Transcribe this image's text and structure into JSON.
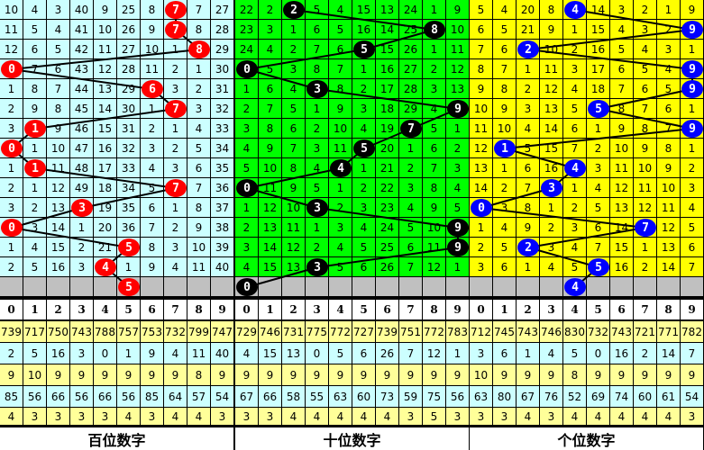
{
  "colors": {
    "stat_yellow": "#ffff99",
    "stat_cyan": "#ccffff",
    "gray": "#c0c0c0"
  },
  "panels": [
    {
      "title": "百位数字",
      "bg": "#ccffff",
      "ball_color": "#ff0000",
      "rows": [
        [
          "10",
          "4",
          "3",
          "40",
          "9",
          "25",
          "8",
          "7",
          "7",
          "27"
        ],
        [
          "11",
          "5",
          "4",
          "41",
          "10",
          "26",
          "9",
          "7",
          "8",
          "28"
        ],
        [
          "12",
          "6",
          "5",
          "42",
          "11",
          "27",
          "10",
          "1",
          "8",
          "29"
        ],
        [
          "0",
          "7",
          "6",
          "43",
          "12",
          "28",
          "11",
          "2",
          "1",
          "30"
        ],
        [
          "1",
          "8",
          "7",
          "44",
          "13",
          "29",
          "6",
          "3",
          "2",
          "31"
        ],
        [
          "2",
          "9",
          "8",
          "45",
          "14",
          "30",
          "1",
          "7",
          "3",
          "32"
        ],
        [
          "3",
          "1",
          "9",
          "46",
          "15",
          "31",
          "2",
          "1",
          "4",
          "33"
        ],
        [
          "0",
          "1",
          "10",
          "47",
          "16",
          "32",
          "3",
          "2",
          "5",
          "34"
        ],
        [
          "1",
          "1",
          "11",
          "48",
          "17",
          "33",
          "4",
          "3",
          "6",
          "35"
        ],
        [
          "2",
          "1",
          "12",
          "49",
          "18",
          "34",
          "5",
          "7",
          "7",
          "36"
        ],
        [
          "3",
          "2",
          "13",
          "3",
          "19",
          "35",
          "6",
          "1",
          "8",
          "37"
        ],
        [
          "0",
          "3",
          "14",
          "1",
          "20",
          "36",
          "7",
          "2",
          "9",
          "38"
        ],
        [
          "1",
          "4",
          "15",
          "2",
          "21",
          "5",
          "8",
          "3",
          "10",
          "39"
        ],
        [
          "2",
          "5",
          "16",
          "3",
          "4",
          "1",
          "9",
          "4",
          "11",
          "40"
        ]
      ],
      "hits": [
        7,
        7,
        8,
        0,
        6,
        7,
        1,
        0,
        1,
        7,
        3,
        0,
        5,
        4
      ],
      "prediction": "5",
      "header": [
        "0",
        "1",
        "2",
        "3",
        "4",
        "5",
        "6",
        "7",
        "8",
        "9"
      ],
      "stats": [
        [
          "739",
          "717",
          "750",
          "743",
          "788",
          "757",
          "753",
          "732",
          "799",
          "747"
        ],
        [
          "2",
          "5",
          "16",
          "3",
          "0",
          "1",
          "9",
          "4",
          "11",
          "40"
        ],
        [
          "9",
          "10",
          "9",
          "9",
          "9",
          "9",
          "9",
          "9",
          "8",
          "9"
        ],
        [
          "85",
          "56",
          "66",
          "56",
          "66",
          "56",
          "85",
          "64",
          "57",
          "54"
        ],
        [
          "4",
          "3",
          "3",
          "3",
          "3",
          "4",
          "3",
          "4",
          "4",
          "3"
        ]
      ]
    },
    {
      "title": "十位数字",
      "bg": "#00ff00",
      "ball_color": "#000000",
      "rows": [
        [
          "22",
          "2",
          "2",
          "5",
          "4",
          "15",
          "13",
          "24",
          "1",
          "9"
        ],
        [
          "23",
          "3",
          "1",
          "6",
          "5",
          "16",
          "14",
          "25",
          "8",
          "10"
        ],
        [
          "24",
          "4",
          "2",
          "7",
          "6",
          "5",
          "15",
          "26",
          "1",
          "11"
        ],
        [
          "0",
          "5",
          "3",
          "8",
          "7",
          "1",
          "16",
          "27",
          "2",
          "12"
        ],
        [
          "1",
          "6",
          "4",
          "3",
          "8",
          "2",
          "17",
          "28",
          "3",
          "13"
        ],
        [
          "2",
          "7",
          "5",
          "1",
          "9",
          "3",
          "18",
          "29",
          "4",
          "9"
        ],
        [
          "3",
          "8",
          "6",
          "2",
          "10",
          "4",
          "19",
          "7",
          "5",
          "1"
        ],
        [
          "4",
          "9",
          "7",
          "3",
          "11",
          "5",
          "20",
          "1",
          "6",
          "2"
        ],
        [
          "5",
          "10",
          "8",
          "4",
          "4",
          "1",
          "21",
          "2",
          "7",
          "3"
        ],
        [
          "0",
          "11",
          "9",
          "5",
          "1",
          "2",
          "22",
          "3",
          "8",
          "4"
        ],
        [
          "1",
          "12",
          "10",
          "3",
          "2",
          "3",
          "23",
          "4",
          "9",
          "5"
        ],
        [
          "2",
          "13",
          "11",
          "1",
          "3",
          "4",
          "24",
          "5",
          "10",
          "9"
        ],
        [
          "3",
          "14",
          "12",
          "2",
          "4",
          "5",
          "25",
          "6",
          "11",
          "9"
        ],
        [
          "4",
          "15",
          "13",
          "3",
          "5",
          "6",
          "26",
          "7",
          "12",
          "1"
        ]
      ],
      "hits": [
        2,
        8,
        5,
        0,
        3,
        9,
        7,
        5,
        4,
        0,
        3,
        9,
        9,
        3
      ],
      "prediction": "0",
      "header": [
        "0",
        "1",
        "2",
        "3",
        "4",
        "5",
        "6",
        "7",
        "8",
        "9"
      ],
      "stats": [
        [
          "729",
          "746",
          "731",
          "775",
          "772",
          "727",
          "739",
          "751",
          "772",
          "783"
        ],
        [
          "4",
          "15",
          "13",
          "0",
          "5",
          "6",
          "26",
          "7",
          "12",
          "1"
        ],
        [
          "9",
          "9",
          "9",
          "9",
          "9",
          "9",
          "9",
          "9",
          "9",
          "9"
        ],
        [
          "67",
          "66",
          "58",
          "55",
          "63",
          "60",
          "73",
          "59",
          "75",
          "56"
        ],
        [
          "3",
          "3",
          "4",
          "4",
          "4",
          "4",
          "4",
          "3",
          "5",
          "3"
        ]
      ]
    },
    {
      "title": "个位数字",
      "bg": "#ffff00",
      "ball_color": "#0000ff",
      "rows": [
        [
          "5",
          "4",
          "20",
          "8",
          "4",
          "14",
          "3",
          "2",
          "1",
          "9"
        ],
        [
          "6",
          "5",
          "21",
          "9",
          "1",
          "15",
          "4",
          "3",
          "2",
          "9"
        ],
        [
          "7",
          "6",
          "2",
          "10",
          "2",
          "16",
          "5",
          "4",
          "3",
          "1"
        ],
        [
          "8",
          "7",
          "1",
          "11",
          "3",
          "17",
          "6",
          "5",
          "4",
          "9"
        ],
        [
          "9",
          "8",
          "2",
          "12",
          "4",
          "18",
          "7",
          "6",
          "5",
          "9"
        ],
        [
          "10",
          "9",
          "3",
          "13",
          "5",
          "5",
          "8",
          "7",
          "6",
          "1"
        ],
        [
          "11",
          "10",
          "4",
          "14",
          "6",
          "1",
          "9",
          "8",
          "7",
          "9"
        ],
        [
          "12",
          "1",
          "5",
          "15",
          "7",
          "2",
          "10",
          "9",
          "8",
          "1"
        ],
        [
          "13",
          "1",
          "6",
          "16",
          "4",
          "3",
          "11",
          "10",
          "9",
          "2"
        ],
        [
          "14",
          "2",
          "7",
          "3",
          "1",
          "4",
          "12",
          "11",
          "10",
          "3"
        ],
        [
          "0",
          "3",
          "8",
          "1",
          "2",
          "5",
          "13",
          "12",
          "11",
          "4"
        ],
        [
          "1",
          "4",
          "9",
          "2",
          "3",
          "6",
          "14",
          "7",
          "12",
          "5"
        ],
        [
          "2",
          "5",
          "2",
          "3",
          "4",
          "7",
          "15",
          "1",
          "13",
          "6"
        ],
        [
          "3",
          "6",
          "1",
          "4",
          "5",
          "5",
          "16",
          "2",
          "14",
          "7"
        ]
      ],
      "hits": [
        4,
        9,
        2,
        9,
        9,
        5,
        9,
        1,
        4,
        3,
        0,
        7,
        2,
        5
      ],
      "prediction": "4",
      "header": [
        "0",
        "1",
        "2",
        "3",
        "4",
        "5",
        "6",
        "7",
        "8",
        "9"
      ],
      "stats": [
        [
          "712",
          "745",
          "743",
          "746",
          "830",
          "732",
          "743",
          "721",
          "771",
          "782"
        ],
        [
          "3",
          "6",
          "1",
          "4",
          "5",
          "0",
          "16",
          "2",
          "14",
          "7"
        ],
        [
          "10",
          "9",
          "9",
          "9",
          "8",
          "9",
          "9",
          "9",
          "9",
          "9"
        ],
        [
          "63",
          "80",
          "67",
          "76",
          "52",
          "69",
          "74",
          "60",
          "61",
          "54"
        ],
        [
          "3",
          "3",
          "4",
          "3",
          "4",
          "4",
          "4",
          "4",
          "4",
          "3"
        ]
      ]
    }
  ],
  "chart_data": {
    "type": "table",
    "note_series": [
      "百位数字",
      "十位数字",
      "个位数字"
    ]
  }
}
